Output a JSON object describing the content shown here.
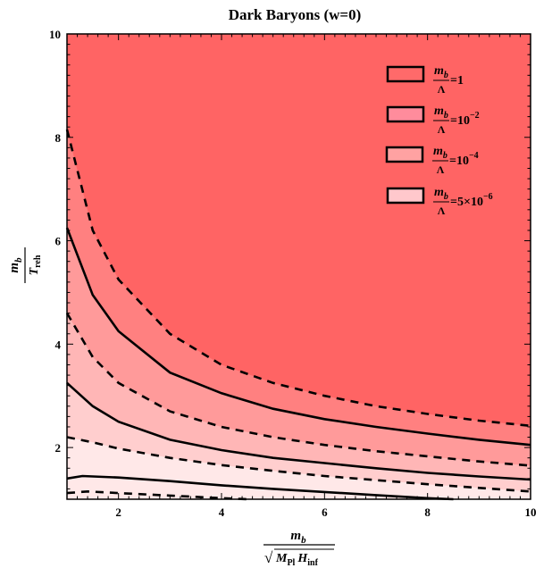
{
  "chart_data": {
    "type": "area",
    "title": "Dark Baryons (w=0)",
    "xlabel": {
      "numerator": "m",
      "numerator_sub": "b",
      "radical_symbol": "√",
      "denominator_M": "M",
      "denominator_M_sub": "Pl",
      "denominator_H": "H",
      "denominator_H_sub": "inf"
    },
    "ylabel": {
      "numerator": "m",
      "numerator_sub": "b",
      "denominator": "T",
      "denominator_sub": "reh"
    },
    "xlim": [
      1,
      10
    ],
    "ylim": [
      1,
      10
    ],
    "x_ticks": [
      "2",
      "4",
      "6",
      "8",
      "10"
    ],
    "y_ticks": [
      "2",
      "4",
      "6",
      "8",
      "10"
    ],
    "grid": false,
    "legend_position": "top-right",
    "legend": [
      {
        "prefix": "m",
        "sub": "b",
        "den": "Λ",
        "rel": "=1",
        "sup": "",
        "color": "#ff6a6a"
      },
      {
        "prefix": "m",
        "sub": "b",
        "den": "Λ",
        "rel": "=10",
        "sup": "−2",
        "color": "#ff8c9c"
      },
      {
        "prefix": "m",
        "sub": "b",
        "den": "Λ",
        "rel": "=10",
        "sup": "−4",
        "color": "#ffa2a2"
      },
      {
        "prefix": "m",
        "sub": "b",
        "den": "Λ",
        "rel": "=5×10",
        "sup": "−6",
        "color": "#ffc8cc"
      }
    ],
    "region_colors": [
      "#ff6464",
      "#ff8080",
      "#ff9a9a",
      "#ffb6b6",
      "#ffcece",
      "#ffe8e8"
    ],
    "boundaries": [
      {
        "style": "dashed",
        "points": [
          [
            1.0,
            8.15
          ],
          [
            1.5,
            6.2
          ],
          [
            2,
            5.25
          ],
          [
            3,
            4.2
          ],
          [
            4,
            3.6
          ],
          [
            5,
            3.25
          ],
          [
            6,
            3.0
          ],
          [
            7,
            2.8
          ],
          [
            8,
            2.65
          ],
          [
            9,
            2.52
          ],
          [
            10,
            2.42
          ]
        ]
      },
      {
        "style": "solid",
        "points": [
          [
            1.0,
            6.25
          ],
          [
            1.5,
            4.95
          ],
          [
            2,
            4.25
          ],
          [
            3,
            3.45
          ],
          [
            4,
            3.05
          ],
          [
            5,
            2.75
          ],
          [
            6,
            2.55
          ],
          [
            7,
            2.4
          ],
          [
            8,
            2.27
          ],
          [
            9,
            2.15
          ],
          [
            10,
            2.05
          ]
        ]
      },
      {
        "style": "dashed",
        "points": [
          [
            1.0,
            4.6
          ],
          [
            1.5,
            3.75
          ],
          [
            2,
            3.25
          ],
          [
            3,
            2.7
          ],
          [
            4,
            2.4
          ],
          [
            5,
            2.2
          ],
          [
            6,
            2.05
          ],
          [
            7,
            1.93
          ],
          [
            8,
            1.83
          ],
          [
            9,
            1.73
          ],
          [
            10,
            1.65
          ]
        ]
      },
      {
        "style": "solid",
        "points": [
          [
            1.0,
            3.25
          ],
          [
            1.5,
            2.8
          ],
          [
            2,
            2.5
          ],
          [
            3,
            2.15
          ],
          [
            4,
            1.95
          ],
          [
            5,
            1.8
          ],
          [
            6,
            1.7
          ],
          [
            7,
            1.6
          ],
          [
            8,
            1.51
          ],
          [
            9,
            1.44
          ],
          [
            10,
            1.38
          ]
        ]
      },
      {
        "style": "dashed",
        "points": [
          [
            1.0,
            2.2
          ],
          [
            1.5,
            2.1
          ],
          [
            2,
            1.98
          ],
          [
            3,
            1.8
          ],
          [
            4,
            1.66
          ],
          [
            5,
            1.55
          ],
          [
            6,
            1.45
          ],
          [
            7,
            1.37
          ],
          [
            8,
            1.29
          ],
          [
            9,
            1.22
          ],
          [
            10,
            1.15
          ]
        ]
      },
      {
        "style": "solid",
        "points": [
          [
            1.0,
            1.4
          ],
          [
            1.3,
            1.45
          ],
          [
            2,
            1.42
          ],
          [
            3,
            1.35
          ],
          [
            4,
            1.27
          ],
          [
            5,
            1.2
          ],
          [
            6,
            1.14
          ],
          [
            7,
            1.08
          ],
          [
            8,
            1.02
          ],
          [
            8.5,
            1.0
          ]
        ]
      },
      {
        "style": "dashed",
        "points": [
          [
            1.0,
            1.12
          ],
          [
            1.4,
            1.15
          ],
          [
            2,
            1.12
          ],
          [
            3,
            1.07
          ],
          [
            4,
            1.02
          ],
          [
            4.5,
            1.0
          ]
        ]
      }
    ]
  }
}
